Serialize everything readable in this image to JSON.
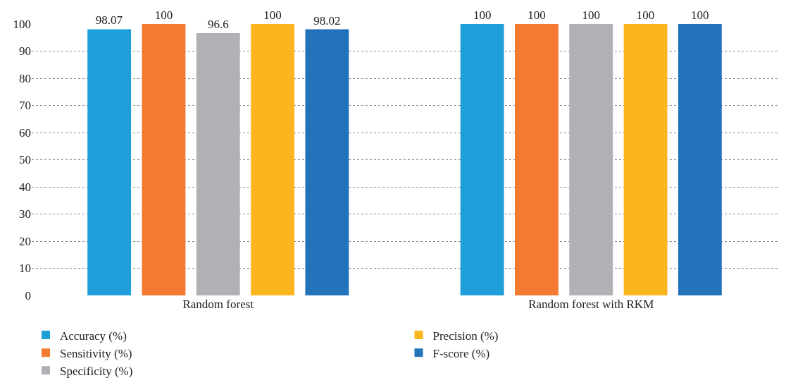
{
  "chart_data": {
    "type": "bar",
    "categories": [
      "Random forest",
      "Random forest with RKM"
    ],
    "series": [
      {
        "name": "Accuracy (%)",
        "color": "#1f9ed9",
        "values": [
          98.07,
          100
        ]
      },
      {
        "name": "Sensitivity (%)",
        "color": "#f37a30",
        "values": [
          100,
          100
        ]
      },
      {
        "name": "Specificity (%)",
        "color": "#b0b1b5",
        "values": [
          96.6,
          100
        ]
      },
      {
        "name": "Precision (%)",
        "color": "#fbb51f",
        "values": [
          100,
          100
        ]
      },
      {
        "name": "F-score (%)",
        "color": "#2373bb",
        "values": [
          98.02,
          100
        ]
      }
    ],
    "ylim": [
      0,
      100
    ],
    "yticks": [
      0,
      10,
      20,
      30,
      40,
      50,
      60,
      70,
      80,
      90,
      100
    ],
    "grid": "y",
    "legend": "bottom",
    "data_labels": true
  }
}
